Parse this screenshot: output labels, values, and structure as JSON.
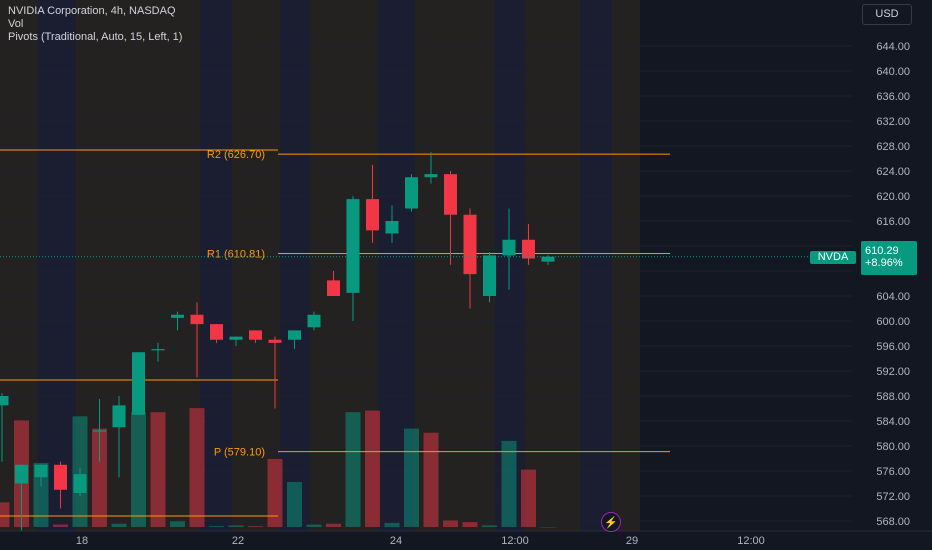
{
  "window": {
    "symbol_title": "NVIDIA Corporation, 4h, NASDAQ",
    "indicator_vol": "Vol",
    "indicator_pivots": "Pivots (Traditional, Auto, 15, Left, 1)"
  },
  "toolbar": {
    "currency": "USD"
  },
  "last_price": {
    "symbol": "NVDA",
    "price": "610.29",
    "change": "+8.96%"
  },
  "colors": {
    "up": "#089981",
    "down": "#f23645",
    "pivot": "#ff9800",
    "background": "#131722",
    "axis_text": "#b2b5be"
  },
  "icons": {
    "alert": "lightning-icon"
  },
  "chart_data": {
    "type": "candlestick",
    "timeframe": "4h",
    "price_axis_ticks": [
      "644.00",
      "640.00",
      "636.00",
      "632.00",
      "628.00",
      "624.00",
      "620.00",
      "616.00",
      "612.00",
      "608.00",
      "604.00",
      "600.00",
      "596.00",
      "592.00",
      "588.00",
      "584.00",
      "580.00",
      "576.00",
      "572.00",
      "568.00"
    ],
    "time_axis_labels": [
      "18",
      "22",
      "24",
      "12:00",
      "29",
      "12:00"
    ],
    "pivot_levels": [
      {
        "label": "R2 (626.70)",
        "value": 626.7
      },
      {
        "label": "R1 (610.81)",
        "value": 610.81
      },
      {
        "label": "P (579.10)",
        "value": 579.1
      }
    ],
    "candles": [
      {
        "o": 586.5,
        "h": 588.5,
        "l": 577.5,
        "c": 588.0
      },
      {
        "o": 574.0,
        "h": 577.0,
        "l": 566.5,
        "c": 577.0
      },
      {
        "o": 575.0,
        "h": 577.0,
        "l": 573.5,
        "c": 577.0
      },
      {
        "o": 577.0,
        "h": 577.5,
        "l": 570.0,
        "c": 573.0
      },
      {
        "o": 572.5,
        "h": 576.5,
        "l": 572.0,
        "c": 575.5
      },
      {
        "o": 582.5,
        "h": 587.5,
        "l": 577.5,
        "c": 582.5
      },
      {
        "o": 583.0,
        "h": 588.0,
        "l": 575.0,
        "c": 586.5
      },
      {
        "o": 585.0,
        "h": 595.0,
        "l": 585.0,
        "c": 595.0
      },
      {
        "o": 595.5,
        "h": 596.5,
        "l": 593.5,
        "c": 595.5
      },
      {
        "o": 600.5,
        "h": 601.5,
        "l": 598.5,
        "c": 601.0
      },
      {
        "o": 601.0,
        "h": 603.0,
        "l": 591.0,
        "c": 599.5
      },
      {
        "o": 599.5,
        "h": 599.5,
        "l": 596.5,
        "c": 597.0
      },
      {
        "o": 597.0,
        "h": 597.5,
        "l": 596.0,
        "c": 597.5
      },
      {
        "o": 598.5,
        "h": 598.5,
        "l": 596.5,
        "c": 597.0
      },
      {
        "o": 597.0,
        "h": 597.5,
        "l": 586.0,
        "c": 596.5
      },
      {
        "o": 597.0,
        "h": 598.5,
        "l": 595.5,
        "c": 598.5
      },
      {
        "o": 599.0,
        "h": 601.5,
        "l": 598.5,
        "c": 601.0
      },
      {
        "o": 606.5,
        "h": 608.0,
        "l": 604.5,
        "c": 604.0
      },
      {
        "o": 604.5,
        "h": 620.0,
        "l": 600.0,
        "c": 619.5
      },
      {
        "o": 619.5,
        "h": 625.0,
        "l": 612.5,
        "c": 614.5
      },
      {
        "o": 614.0,
        "h": 618.5,
        "l": 612.5,
        "c": 616.0
      },
      {
        "o": 618.0,
        "h": 623.5,
        "l": 617.5,
        "c": 623.0
      },
      {
        "o": 623.0,
        "h": 627.0,
        "l": 622.0,
        "c": 623.5
      },
      {
        "o": 623.5,
        "h": 624.0,
        "l": 609.0,
        "c": 617.0
      },
      {
        "o": 617.0,
        "h": 618.0,
        "l": 602.0,
        "c": 607.5
      },
      {
        "o": 604.0,
        "h": 611.0,
        "l": 603.0,
        "c": 610.5
      },
      {
        "o": 610.5,
        "h": 618.0,
        "l": 605.0,
        "c": 613.0
      },
      {
        "o": 613.0,
        "h": 615.5,
        "l": 609.0,
        "c": 610.0
      },
      {
        "o": 609.5,
        "h": 610.5,
        "l": 609.0,
        "c": 610.29
      }
    ],
    "volume": [
      {
        "v": 3.0,
        "up": false
      },
      {
        "v": 13.0,
        "up": false
      },
      {
        "v": 7.8,
        "up": true
      },
      {
        "v": 0.3,
        "up": false
      },
      {
        "v": 13.5,
        "up": true
      },
      {
        "v": 12.0,
        "up": false
      },
      {
        "v": 0.4,
        "up": true
      },
      {
        "v": 14.0,
        "up": true
      },
      {
        "v": 14.0,
        "up": false
      },
      {
        "v": 0.7,
        "up": true
      },
      {
        "v": 14.5,
        "up": false
      },
      {
        "v": 0.1,
        "up": true
      },
      {
        "v": 0.2,
        "up": true
      },
      {
        "v": 0.1,
        "up": false
      },
      {
        "v": 8.3,
        "up": false
      },
      {
        "v": 5.5,
        "up": true
      },
      {
        "v": 0.3,
        "up": true
      },
      {
        "v": 0.4,
        "up": false
      },
      {
        "v": 14.0,
        "up": true
      },
      {
        "v": 14.2,
        "up": false
      },
      {
        "v": 0.5,
        "up": true
      },
      {
        "v": 12.0,
        "up": true
      },
      {
        "v": 11.5,
        "up": false
      },
      {
        "v": 0.8,
        "up": false
      },
      {
        "v": 0.6,
        "up": false
      },
      {
        "v": 0.2,
        "up": true
      },
      {
        "v": 10.5,
        "up": true
      },
      {
        "v": 7.0,
        "up": false
      },
      {
        "v": 0.0,
        "up": true
      }
    ]
  }
}
